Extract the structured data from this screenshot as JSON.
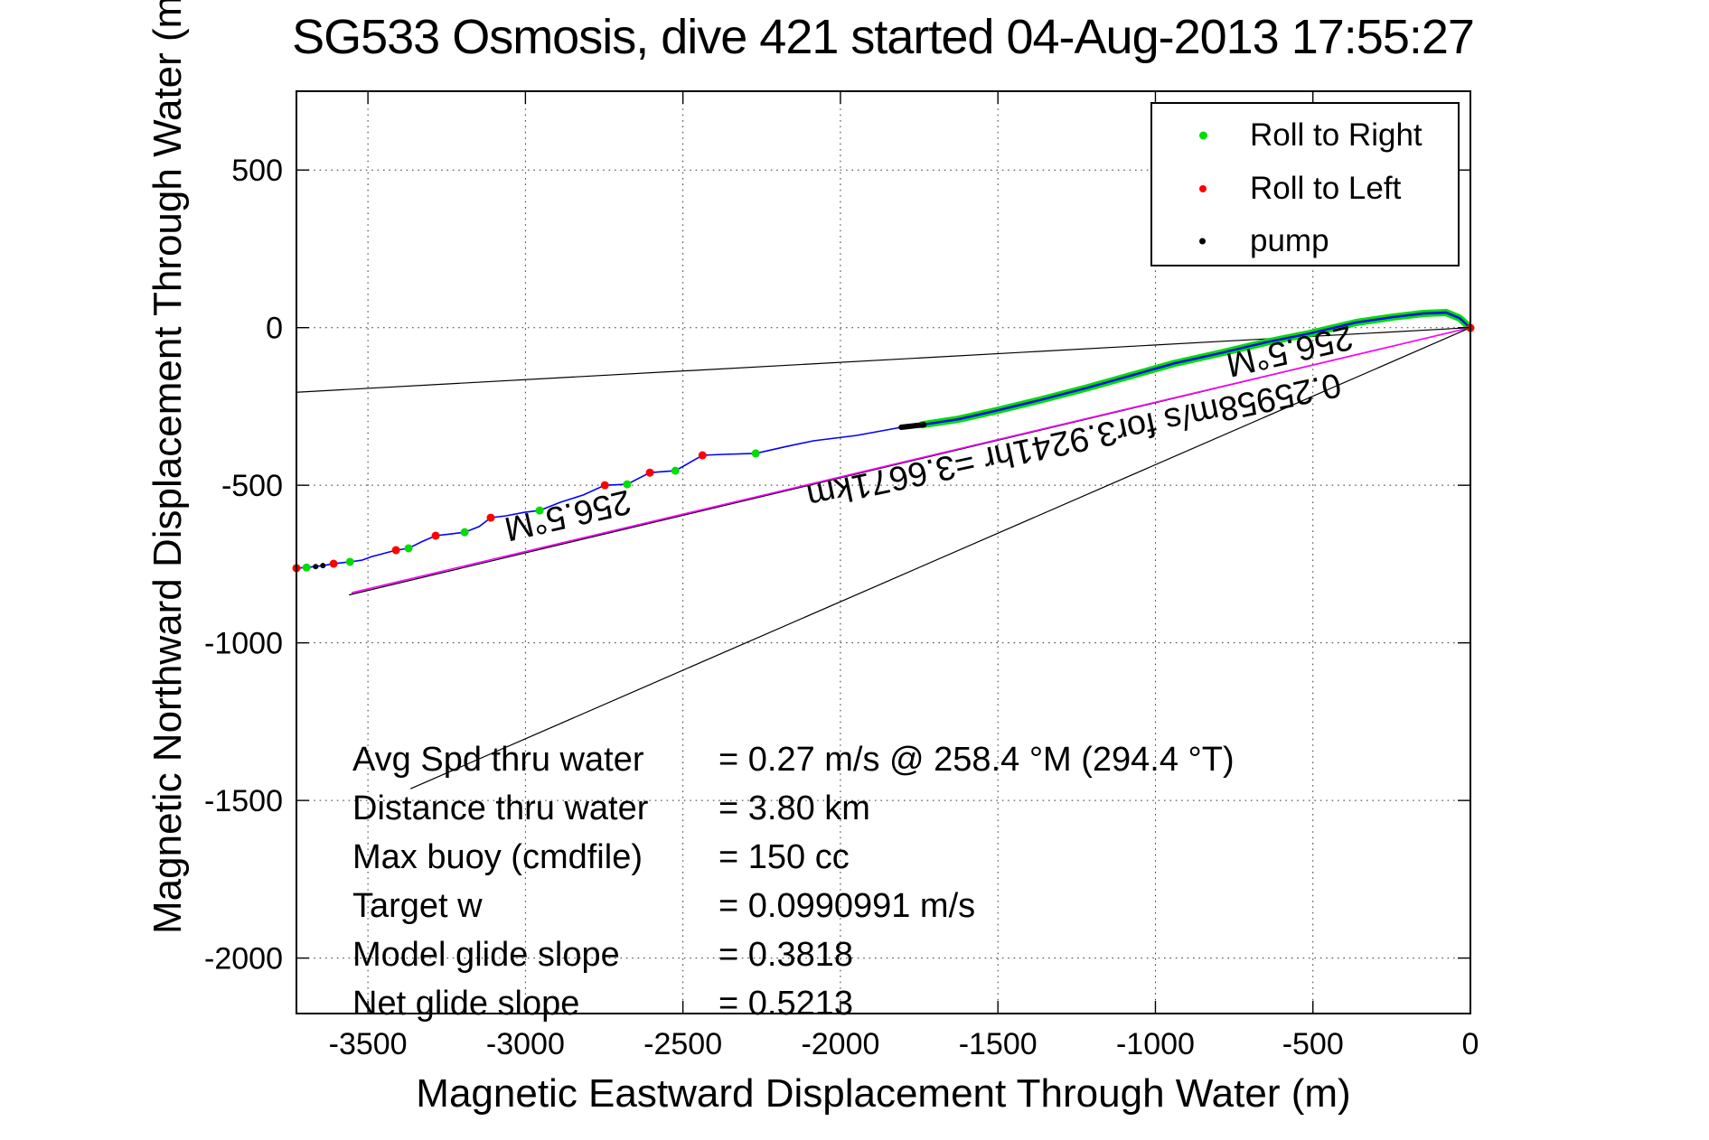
{
  "title": "SG533 Osmosis, dive 421 started 04-Aug-2013 17:55:27",
  "axes": {
    "xlabel": "Magnetic Eastward Displacement Through Water (m)",
    "ylabel": "Magnetic Northward Displacement Through Water (m)"
  },
  "legend": {
    "items": [
      {
        "label": "Roll to Right",
        "color": "#00dd00"
      },
      {
        "label": "Roll to Left",
        "color": "#ff0000"
      },
      {
        "label": "pump",
        "color": "#000000"
      }
    ]
  },
  "stats": {
    "rows": [
      {
        "label": "Avg Spd thru water",
        "value": "=  0.27 m/s @ 258.4 °M (294.4 °T)"
      },
      {
        "label": "Distance thru water",
        "value": "=  3.80 km"
      },
      {
        "label": "Max buoy (cmdfile)",
        "value": "= 150 cc"
      },
      {
        "label": "Target w",
        "value": "= 0.0990991 m/s"
      },
      {
        "label": "Model glide slope",
        "value": "= 0.3818"
      },
      {
        "label": "Net glide slope",
        "value": "= 0.5213"
      }
    ]
  },
  "chart_data": {
    "type": "line",
    "title": "SG533 Osmosis, dive 421 started 04-Aug-2013 17:55:27",
    "xlabel": "Magnetic Eastward Displacement Through Water (m)",
    "ylabel": "Magnetic Northward Displacement Through Water (m)",
    "xlim": [
      -3727,
      0
    ],
    "ylim": [
      -2176,
      750
    ],
    "x_ticks": [
      -3500,
      -3000,
      -2500,
      -2000,
      -1500,
      -1000,
      -500,
      0
    ],
    "y_ticks": [
      500,
      0,
      -500,
      -1000,
      -1500,
      -2000
    ],
    "grid": "dotted",
    "legend_position": "upper right",
    "track": {
      "name": "dive-track-through-water",
      "color": "#0000ff",
      "points": [
        [
          -3727,
          -763
        ],
        [
          -3695,
          -761
        ],
        [
          -3669,
          -758
        ],
        [
          -3643,
          -755
        ],
        [
          -3609,
          -749
        ],
        [
          -3557,
          -743
        ],
        [
          -3520,
          -738
        ],
        [
          -3486,
          -726
        ],
        [
          -3411,
          -706
        ],
        [
          -3371,
          -700
        ],
        [
          -3331,
          -680
        ],
        [
          -3285,
          -660
        ],
        [
          -3233,
          -654
        ],
        [
          -3193,
          -649
        ],
        [
          -3147,
          -631
        ],
        [
          -3110,
          -603
        ],
        [
          -3061,
          -597
        ],
        [
          -3004,
          -586
        ],
        [
          -2955,
          -580
        ],
        [
          -2889,
          -554
        ],
        [
          -2817,
          -531
        ],
        [
          -2748,
          -500
        ],
        [
          -2677,
          -497
        ],
        [
          -2605,
          -460
        ],
        [
          -2524,
          -454
        ],
        [
          -2438,
          -405
        ],
        [
          -2372,
          -402
        ],
        [
          -2269,
          -399
        ],
        [
          -2172,
          -377
        ],
        [
          -2086,
          -359
        ],
        [
          -1948,
          -342
        ],
        [
          -1807,
          -316
        ],
        [
          -1741,
          -308
        ],
        [
          -1627,
          -291
        ],
        [
          -1512,
          -265
        ],
        [
          -1368,
          -230
        ],
        [
          -1225,
          -193
        ],
        [
          -1081,
          -153
        ],
        [
          -938,
          -113
        ],
        [
          -795,
          -81
        ],
        [
          -651,
          -47
        ],
        [
          -508,
          -18
        ],
        [
          -364,
          16
        ],
        [
          -250,
          33
        ],
        [
          -149,
          45
        ],
        [
          -77,
          48
        ],
        [
          -34,
          30
        ],
        [
          0,
          -1
        ]
      ]
    },
    "roll_right_segment": {
      "x_start": -1741,
      "color": "#00dd00",
      "width": 8
    },
    "markers": {
      "roll_right": {
        "color": "#00dd00",
        "size": 4.5,
        "points": [
          [
            -3695,
            -761
          ],
          [
            -3557,
            -743
          ],
          [
            -3371,
            -700
          ],
          [
            -3193,
            -649
          ],
          [
            -2955,
            -580
          ],
          [
            -2677,
            -497
          ],
          [
            -2524,
            -454
          ],
          [
            -2269,
            -399
          ]
        ]
      },
      "roll_left": {
        "color": "#ff0000",
        "size": 4.5,
        "points": [
          [
            -3727,
            -763
          ],
          [
            -3609,
            -749
          ],
          [
            -3411,
            -706
          ],
          [
            -3285,
            -660
          ],
          [
            -3110,
            -603
          ],
          [
            -2748,
            -500
          ],
          [
            -2605,
            -460
          ],
          [
            -2438,
            -405
          ],
          [
            0,
            -1
          ]
        ]
      },
      "pump": {
        "color": "#000000",
        "size": 3,
        "points": [
          [
            -3666,
            -758
          ],
          [
            -3643,
            -755
          ]
        ],
        "segment": [
          [
            -1807,
            -316
          ],
          [
            -1735,
            -308
          ]
        ],
        "segment_width": 6
      }
    },
    "reference_lines": [
      {
        "name": "bearing-line-upper",
        "color": "#000000",
        "width": 1.2,
        "from": [
          0,
          0
        ],
        "to": [
          -3727,
          -205
        ]
      },
      {
        "name": "dac-line-shadow",
        "color": "#000000",
        "width": 1.2,
        "from": [
          0,
          0
        ],
        "to": [
          -3560,
          -848
        ]
      },
      {
        "name": "dac-line",
        "color": "#ff00ff",
        "width": 1.6,
        "from": [
          0,
          0
        ],
        "to": [
          -3552,
          -841
        ]
      },
      {
        "name": "bearing-line-lower",
        "color": "#000000",
        "width": 1.2,
        "from": [
          0,
          0
        ],
        "to": [
          -3365,
          -1463
        ]
      }
    ],
    "annotations": [
      {
        "text": "256.5°M",
        "x": -574,
        "y": -73,
        "angle": 167
      },
      {
        "text": "0.25958m/s for3.9241hr =3.6671km",
        "x": -1259,
        "y": -357,
        "angle": 168
      },
      {
        "text": "256.5°M",
        "x": -2866,
        "y": -594,
        "angle": 167
      }
    ]
  }
}
